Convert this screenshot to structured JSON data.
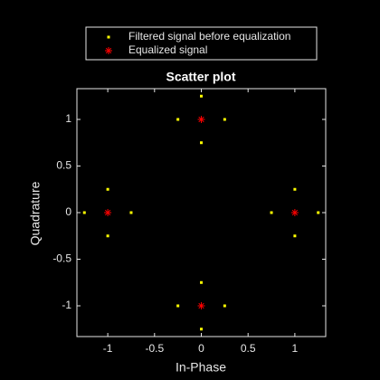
{
  "chart_data": {
    "type": "scatter",
    "title": "Scatter plot",
    "xlabel": "In-Phase",
    "ylabel": "Quadrature",
    "xlim": [
      -1.33,
      1.33
    ],
    "ylim": [
      -1.33,
      1.33
    ],
    "xticks": [
      -1,
      -0.5,
      0,
      0.5,
      1
    ],
    "yticks": [
      -1,
      -0.5,
      0,
      0.5,
      1
    ],
    "legend_position": "top",
    "series": [
      {
        "name": "Filtered signal before equalization",
        "color": "#ffff00",
        "marker": "square",
        "x": [
          0.75,
          1.25,
          1,
          1,
          -0.75,
          -1.25,
          -1,
          -1,
          0,
          0,
          -0.25,
          0.25,
          0,
          0,
          -0.25,
          0.25
        ],
        "y": [
          0,
          0,
          0.25,
          -0.25,
          0,
          0,
          0.25,
          -0.25,
          1.25,
          0.75,
          1,
          1,
          -1.25,
          -0.75,
          -1,
          -1
        ]
      },
      {
        "name": "Equalized signal",
        "color": "#ff0000",
        "marker": "asterisk",
        "x": [
          1,
          -1,
          0,
          0
        ],
        "y": [
          0,
          0,
          1,
          -1
        ]
      }
    ]
  }
}
